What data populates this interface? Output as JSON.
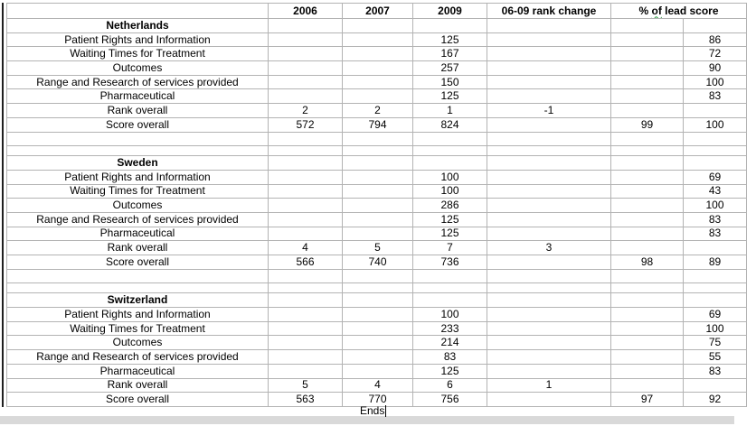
{
  "colors": {
    "grid_line": "#b3b3b3",
    "squiggle_underline": "#2f9e44",
    "scrollbar": "#d9d9d9",
    "caret": "#000000",
    "text": "#000000"
  },
  "table": {
    "header": {
      "labels": [
        "",
        "2006",
        "2007",
        "2009",
        "06-09 rank change"
      ],
      "lead_score": {
        "pre": "% ",
        "flagged_word": "of",
        "post": " lead score"
      }
    },
    "sections": [
      {
        "country": "Netherlands",
        "rows": [
          [
            "Patient Rights and Information",
            "",
            "",
            "125",
            "",
            "",
            "86"
          ],
          [
            "Waiting Times for Treatment",
            "",
            "",
            "167",
            "",
            "",
            "72"
          ],
          [
            "Outcomes",
            "",
            "",
            "257",
            "",
            "",
            "90"
          ],
          [
            "Range and Research of services provided",
            "",
            "",
            "150",
            "",
            "",
            "100"
          ],
          [
            "Pharmaceutical",
            "",
            "",
            "125",
            "",
            "",
            "83"
          ],
          [
            "Rank overall",
            "2",
            "2",
            "1",
            "-1",
            "",
            ""
          ],
          [
            "Score overall",
            "572",
            "794",
            "824",
            "",
            "99",
            "100"
          ]
        ]
      },
      {
        "country": "Sweden",
        "rows": [
          [
            "Patient Rights and Information",
            "",
            "",
            "100",
            "",
            "",
            "69"
          ],
          [
            "Waiting Times for Treatment",
            "",
            "",
            "100",
            "",
            "",
            "43"
          ],
          [
            "Outcomes",
            "",
            "",
            "286",
            "",
            "",
            "100"
          ],
          [
            "Range and Research of services provided",
            "",
            "",
            "125",
            "",
            "",
            "83"
          ],
          [
            "Pharmaceutical",
            "",
            "",
            "125",
            "",
            "",
            "83"
          ],
          [
            "Rank overall",
            "4",
            "5",
            "7",
            "3",
            "",
            ""
          ],
          [
            "Score overall",
            "566",
            "740",
            "736",
            "",
            "98",
            "89"
          ]
        ]
      },
      {
        "country": "Switzerland",
        "rows": [
          [
            "Patient Rights and Information",
            "",
            "",
            "100",
            "",
            "",
            "69"
          ],
          [
            "Waiting Times for Treatment",
            "",
            "",
            "233",
            "",
            "",
            "100"
          ],
          [
            "Outcomes",
            "",
            "",
            "214",
            "",
            "",
            "75"
          ],
          [
            "Range and Research of services provided",
            "",
            "",
            "83",
            "",
            "",
            "55"
          ],
          [
            "Pharmaceutical",
            "",
            "",
            "125",
            "",
            "",
            "83"
          ],
          [
            "Rank overall",
            "5",
            "4",
            "6",
            "1",
            "",
            ""
          ],
          [
            "Score overall",
            "563",
            "770",
            "756",
            "",
            "97",
            "92"
          ]
        ]
      }
    ]
  },
  "footer": {
    "typed_text": "Ends"
  }
}
